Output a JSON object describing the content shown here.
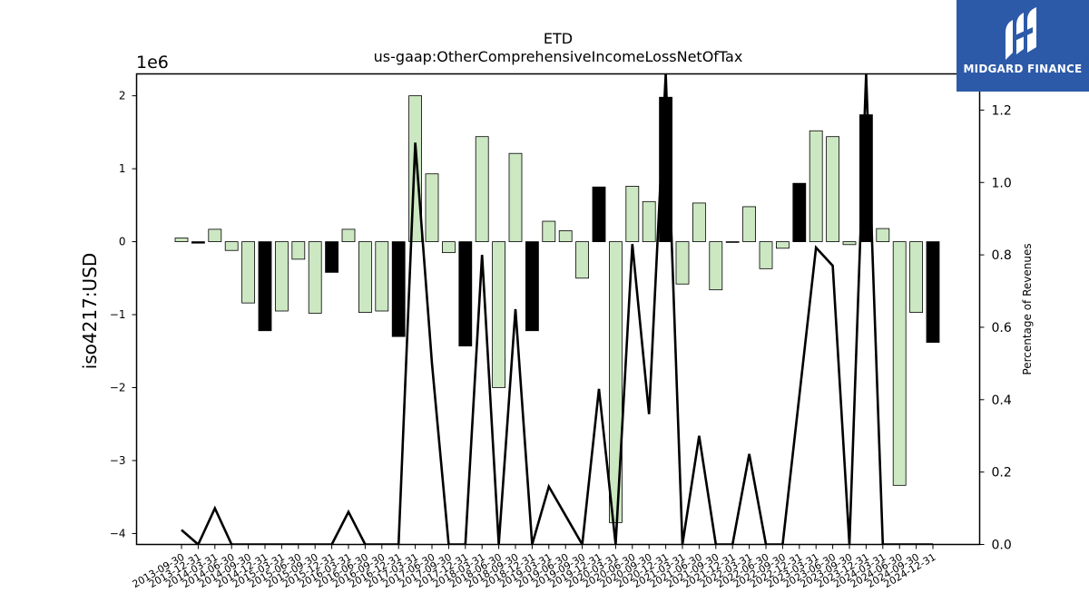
{
  "chart_data": {
    "type": "bar",
    "title": "ETD",
    "subtitle": "us-gaap:OtherComprehensiveIncomeLossNetOfTax",
    "ylabel": "iso4217:USD",
    "y_offset_label": "1e6",
    "y2label": "Percentage of Revenues",
    "ylim": [
      -4.15,
      2.3
    ],
    "y2lim": [
      0.0,
      1.3
    ],
    "yticks": [
      2,
      1,
      0,
      -1,
      -2,
      -3,
      -4
    ],
    "y2ticks": [
      0.0,
      0.2,
      0.4,
      0.6,
      0.8,
      1.0,
      1.2
    ],
    "grid": false,
    "categories": [
      "2013-09-30",
      "2013-12-31",
      "2014-03-31",
      "2014-06-30",
      "2014-09-30",
      "2014-12-31",
      "2015-03-31",
      "2015-06-30",
      "2015-09-30",
      "2015-12-31",
      "2016-03-31",
      "2016-06-30",
      "2016-09-30",
      "2016-12-31",
      "2017-03-31",
      "2017-06-30",
      "2017-09-30",
      "2017-12-31",
      "2018-03-31",
      "2018-06-30",
      "2018-09-30",
      "2018-12-31",
      "2019-03-31",
      "2019-06-30",
      "2019-09-30",
      "2019-12-31",
      "2020-03-31",
      "2020-06-30",
      "2020-09-30",
      "2020-12-31",
      "2021-03-31",
      "2021-06-30",
      "2021-09-30",
      "2021-12-31",
      "2022-03-31",
      "2022-06-30",
      "2022-09-30",
      "2022-12-31",
      "2023-03-31",
      "2023-06-30",
      "2023-09-30",
      "2023-12-31",
      "2024-03-31",
      "2024-06-30",
      "2024-09-30",
      "2024-12-31"
    ],
    "series": [
      {
        "kind": "bar",
        "unit": "millions USD",
        "values": [
          0.05,
          -0.02,
          0.17,
          -0.12,
          -0.84,
          -1.22,
          -0.95,
          -0.24,
          -0.98,
          -0.42,
          0.17,
          -0.97,
          -0.95,
          -1.3,
          2.0,
          0.93,
          -0.15,
          -1.43,
          1.44,
          -2.0,
          1.21,
          -1.22,
          0.28,
          0.15,
          -0.5,
          0.75,
          -3.85,
          0.76,
          0.55,
          1.98,
          -0.58,
          0.53,
          -0.66,
          -0.01,
          0.48,
          -0.37,
          -0.09,
          0.8,
          1.52,
          1.44,
          -0.04,
          1.74,
          0.18,
          -3.34,
          -0.97,
          -1.38
        ],
        "highlight": [
          false,
          true,
          false,
          false,
          false,
          true,
          false,
          false,
          false,
          true,
          false,
          false,
          false,
          true,
          false,
          false,
          false,
          true,
          false,
          false,
          false,
          true,
          false,
          false,
          false,
          true,
          false,
          false,
          false,
          true,
          false,
          false,
          false,
          true,
          false,
          false,
          false,
          true,
          false,
          false,
          false,
          true,
          false,
          false,
          false,
          true
        ]
      },
      {
        "kind": "line",
        "axis": "right",
        "values": [
          0.04,
          0.0,
          0.1,
          0.0,
          0.0,
          0.0,
          0.0,
          0.0,
          0.0,
          0.0,
          0.09,
          0.0,
          0.0,
          0.0,
          1.11,
          0.5,
          0.0,
          0.0,
          0.8,
          0.0,
          0.65,
          0.0,
          0.16,
          0.08,
          0.0,
          0.43,
          0.0,
          0.83,
          0.36,
          1.3,
          0.0,
          0.3,
          0.0,
          0.0,
          0.25,
          0.0,
          0.0,
          0.41,
          0.82,
          0.77,
          0.0,
          1.3,
          0.0,
          0.0,
          0.0,
          0.0
        ]
      }
    ],
    "colors": {
      "bar_fill": "#cce8c2",
      "bar_highlight": "#000000",
      "bar_edge": "#000000",
      "line": "#000000"
    }
  },
  "logo": {
    "text": "MIDGARD FINANCE",
    "bg": "#2d5aa8"
  }
}
